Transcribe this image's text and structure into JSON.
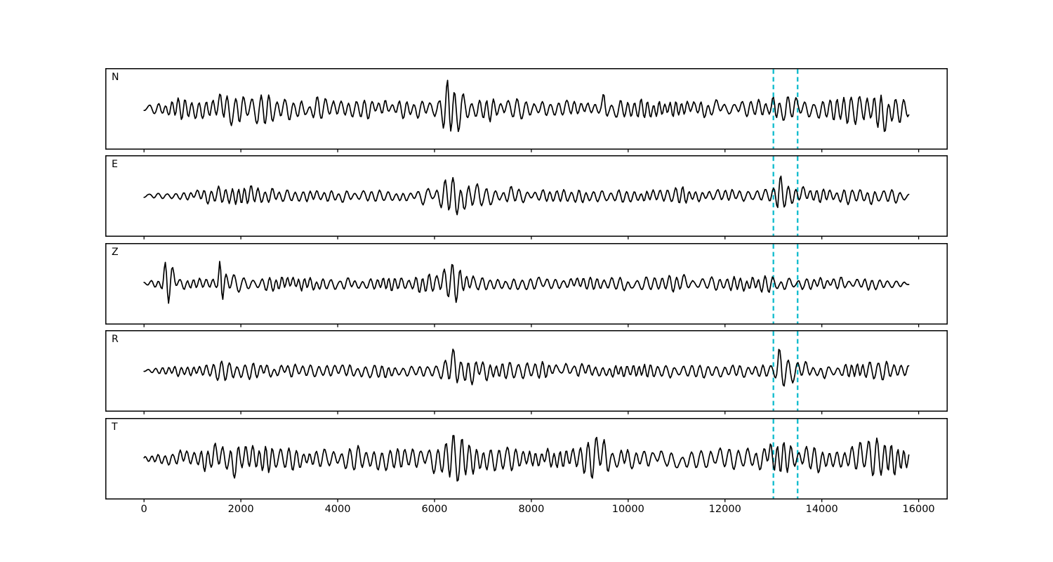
{
  "figure": {
    "background": "#ffffff",
    "trace_color": "#000000",
    "accent_color": "#17becf"
  },
  "chart_data": {
    "type": "line",
    "kind": "seismogram-multipanel",
    "title": "",
    "xlabel": "",
    "ylabel": "",
    "grid": false,
    "legend": null,
    "xlim": [
      -800,
      16600
    ],
    "x_data_range": [
      0,
      15800
    ],
    "x_ticks": [
      0,
      2000,
      4000,
      6000,
      8000,
      10000,
      12000,
      14000,
      16000
    ],
    "x_tick_labels": [
      "0",
      "2000",
      "4000",
      "6000",
      "8000",
      "10000",
      "12000",
      "14000",
      "16000"
    ],
    "trace_color": "#000000",
    "event_lines": {
      "x_values": [
        13000,
        13500
      ],
      "color": "#17becf",
      "line_style": "dashed"
    },
    "panels": [
      {
        "label": "N",
        "envelope": [
          [
            0,
            5
          ],
          [
            250,
            9
          ],
          [
            700,
            13
          ],
          [
            1100,
            16
          ],
          [
            1500,
            26
          ],
          [
            1800,
            31
          ],
          [
            2200,
            28
          ],
          [
            2600,
            20
          ],
          [
            3200,
            16
          ],
          [
            4000,
            17
          ],
          [
            5000,
            14
          ],
          [
            6100,
            17
          ],
          [
            6280,
            50
          ],
          [
            6500,
            40
          ],
          [
            6750,
            22
          ],
          [
            7200,
            17
          ],
          [
            8000,
            15
          ],
          [
            9000,
            14
          ],
          [
            9420,
            12
          ],
          [
            9500,
            40
          ],
          [
            9580,
            13
          ],
          [
            10500,
            15
          ],
          [
            11300,
            16
          ],
          [
            12200,
            15
          ],
          [
            12900,
            17
          ],
          [
            13100,
            30
          ],
          [
            13250,
            26
          ],
          [
            13500,
            18
          ],
          [
            14000,
            16
          ],
          [
            14600,
            20
          ],
          [
            14900,
            29
          ],
          [
            15300,
            31
          ],
          [
            15600,
            22
          ],
          [
            15800,
            10
          ]
        ]
      },
      {
        "label": "E",
        "envelope": [
          [
            0,
            3
          ],
          [
            500,
            6
          ],
          [
            1200,
            9
          ],
          [
            1600,
            19
          ],
          [
            2000,
            17
          ],
          [
            2400,
            13
          ],
          [
            3000,
            10
          ],
          [
            4000,
            9
          ],
          [
            5000,
            9
          ],
          [
            6100,
            13
          ],
          [
            6350,
            27
          ],
          [
            6650,
            29
          ],
          [
            6950,
            17
          ],
          [
            7500,
            11
          ],
          [
            8500,
            10
          ],
          [
            9500,
            11
          ],
          [
            10500,
            10
          ],
          [
            11500,
            11
          ],
          [
            12500,
            11
          ],
          [
            13000,
            12
          ],
          [
            13060,
            20
          ],
          [
            13110,
            52
          ],
          [
            13180,
            46
          ],
          [
            13280,
            20
          ],
          [
            13400,
            15
          ],
          [
            13800,
            14
          ],
          [
            14500,
            13
          ],
          [
            15000,
            15
          ],
          [
            15500,
            13
          ],
          [
            15800,
            6
          ]
        ]
      },
      {
        "label": "Z",
        "envelope": [
          [
            0,
            3
          ],
          [
            350,
            6
          ],
          [
            430,
            24
          ],
          [
            490,
            46
          ],
          [
            560,
            30
          ],
          [
            700,
            11
          ],
          [
            1000,
            9
          ],
          [
            1500,
            10
          ],
          [
            1580,
            48
          ],
          [
            1680,
            14
          ],
          [
            2200,
            10
          ],
          [
            3000,
            12
          ],
          [
            3600,
            11
          ],
          [
            4500,
            10
          ],
          [
            5500,
            9
          ],
          [
            6050,
            15
          ],
          [
            6250,
            31
          ],
          [
            6550,
            25
          ],
          [
            6850,
            13
          ],
          [
            7500,
            10
          ],
          [
            8500,
            10
          ],
          [
            9500,
            9
          ],
          [
            10400,
            13
          ],
          [
            11000,
            13
          ],
          [
            11800,
            10
          ],
          [
            12800,
            11
          ],
          [
            13300,
            11
          ],
          [
            14200,
            9
          ],
          [
            15000,
            10
          ],
          [
            15800,
            6
          ]
        ]
      },
      {
        "label": "R",
        "envelope": [
          [
            0,
            4
          ],
          [
            600,
            7
          ],
          [
            1200,
            10
          ],
          [
            1550,
            21
          ],
          [
            1900,
            15
          ],
          [
            2500,
            12
          ],
          [
            3500,
            11
          ],
          [
            4500,
            11
          ],
          [
            5500,
            10
          ],
          [
            6150,
            15
          ],
          [
            6350,
            29
          ],
          [
            6650,
            27
          ],
          [
            6950,
            15
          ],
          [
            7600,
            12
          ],
          [
            8300,
            13
          ],
          [
            9200,
            12
          ],
          [
            10200,
            13
          ],
          [
            11200,
            11
          ],
          [
            12200,
            12
          ],
          [
            12900,
            11
          ],
          [
            13060,
            18
          ],
          [
            13120,
            50
          ],
          [
            13250,
            32
          ],
          [
            13450,
            16
          ],
          [
            14000,
            13
          ],
          [
            14700,
            14
          ],
          [
            15300,
            15
          ],
          [
            15800,
            8
          ]
        ]
      },
      {
        "label": "T",
        "envelope": [
          [
            0,
            5
          ],
          [
            300,
            10
          ],
          [
            900,
            14
          ],
          [
            1300,
            21
          ],
          [
            1700,
            29
          ],
          [
            2100,
            31
          ],
          [
            2500,
            27
          ],
          [
            3000,
            18
          ],
          [
            3800,
            16
          ],
          [
            4600,
            17
          ],
          [
            5400,
            15
          ],
          [
            6150,
            19
          ],
          [
            6330,
            50
          ],
          [
            6600,
            41
          ],
          [
            6850,
            23
          ],
          [
            7300,
            19
          ],
          [
            8100,
            16
          ],
          [
            9000,
            16
          ],
          [
            9460,
            38
          ],
          [
            9650,
            19
          ],
          [
            10500,
            17
          ],
          [
            11200,
            19
          ],
          [
            12000,
            17
          ],
          [
            12800,
            19
          ],
          [
            13120,
            40
          ],
          [
            13320,
            27
          ],
          [
            13700,
            19
          ],
          [
            14300,
            18
          ],
          [
            14800,
            31
          ],
          [
            15300,
            33
          ],
          [
            15700,
            23
          ],
          [
            15800,
            11
          ]
        ]
      }
    ]
  }
}
